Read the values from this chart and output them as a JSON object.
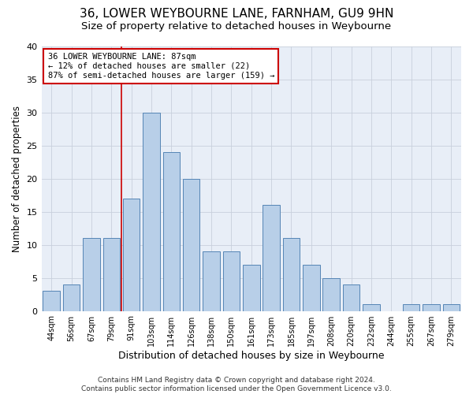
{
  "title": "36, LOWER WEYBOURNE LANE, FARNHAM, GU9 9HN",
  "subtitle": "Size of property relative to detached houses in Weybourne",
  "xlabel": "Distribution of detached houses by size in Weybourne",
  "ylabel": "Number of detached properties",
  "bar_labels": [
    "44sqm",
    "56sqm",
    "67sqm",
    "79sqm",
    "91sqm",
    "103sqm",
    "114sqm",
    "126sqm",
    "138sqm",
    "150sqm",
    "161sqm",
    "173sqm",
    "185sqm",
    "197sqm",
    "208sqm",
    "220sqm",
    "232sqm",
    "244sqm",
    "255sqm",
    "267sqm",
    "279sqm"
  ],
  "bar_values": [
    3,
    4,
    11,
    11,
    17,
    30,
    24,
    20,
    9,
    9,
    7,
    16,
    11,
    7,
    5,
    4,
    1,
    0,
    1,
    1,
    1
  ],
  "bar_color": "#b8cfe8",
  "bar_edge_color": "#5585b5",
  "vline_color": "#cc0000",
  "annotation_text": "36 LOWER WEYBOURNE LANE: 87sqm\n← 12% of detached houses are smaller (22)\n87% of semi-detached houses are larger (159) →",
  "annotation_box_color": "#ffffff",
  "annotation_box_edge_color": "#cc0000",
  "ylim": [
    0,
    40
  ],
  "yticks": [
    0,
    5,
    10,
    15,
    20,
    25,
    30,
    35,
    40
  ],
  "grid_color": "#c8d0dc",
  "bg_color": "#e8eef7",
  "footer": "Contains HM Land Registry data © Crown copyright and database right 2024.\nContains public sector information licensed under the Open Government Licence v3.0.",
  "title_fontsize": 11,
  "subtitle_fontsize": 9.5,
  "xlabel_fontsize": 9,
  "ylabel_fontsize": 8.5,
  "annotation_fontsize": 7.5,
  "footer_fontsize": 6.5,
  "tick_fontsize": 7,
  "ytick_fontsize": 8
}
